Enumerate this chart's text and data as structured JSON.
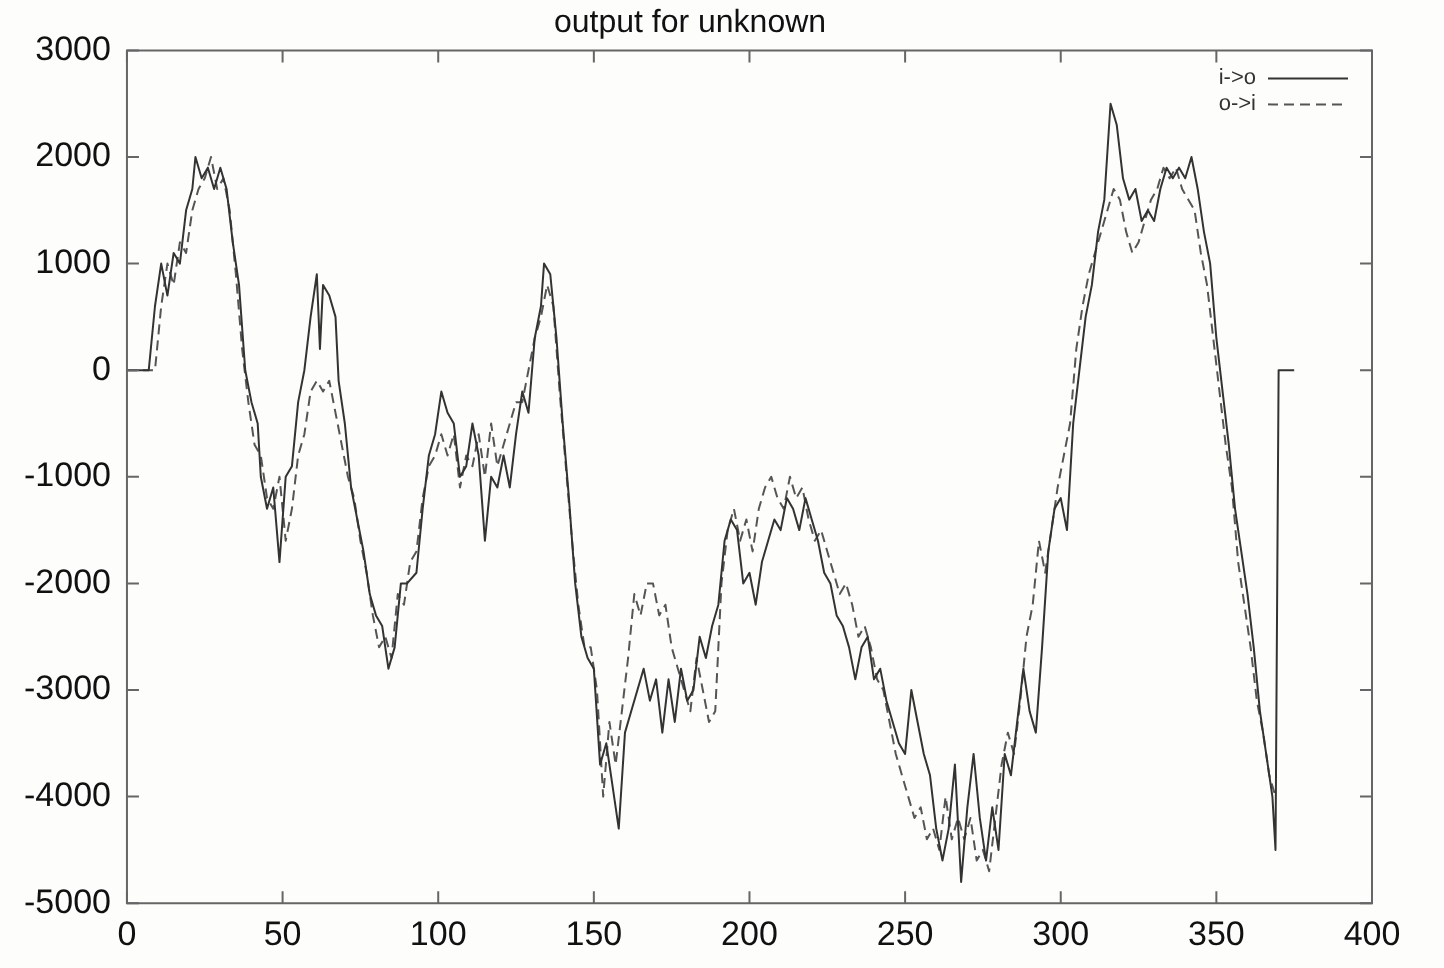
{
  "chart_data": {
    "type": "line",
    "title": "output for unknown",
    "xlim": [
      0,
      400
    ],
    "xticks": [
      0,
      50,
      100,
      150,
      200,
      250,
      300,
      350,
      400
    ],
    "ylim": [
      -5000,
      3000
    ],
    "yticks": [
      -5000,
      -4000,
      -3000,
      -2000,
      -1000,
      0,
      1000,
      2000,
      3000
    ],
    "grid": false,
    "legend": "top right",
    "marker": "none",
    "series": [
      {
        "name": "i->o",
        "color": "#333333",
        "line_style": "solid",
        "x": [
          0,
          7,
          9,
          11,
          13,
          15,
          17,
          19,
          21,
          22,
          24,
          26,
          28,
          30,
          32,
          34,
          36,
          38,
          40,
          42,
          43,
          45,
          47,
          49,
          51,
          53,
          55,
          57,
          59,
          61,
          62,
          63,
          65,
          67,
          68,
          70,
          72,
          74,
          76,
          78,
          80,
          82,
          84,
          86,
          88,
          90,
          93,
          95,
          97,
          99,
          101,
          103,
          105,
          107,
          109,
          111,
          113,
          115,
          117,
          119,
          121,
          123,
          125,
          127,
          129,
          131,
          133,
          134,
          136,
          138,
          140,
          142,
          144,
          146,
          148,
          150,
          152,
          154,
          156,
          158,
          160,
          162,
          164,
          166,
          168,
          170,
          172,
          174,
          176,
          178,
          180,
          182,
          184,
          186,
          188,
          190,
          192,
          194,
          196,
          198,
          200,
          202,
          204,
          206,
          208,
          210,
          212,
          214,
          216,
          218,
          220,
          222,
          224,
          226,
          228,
          230,
          232,
          234,
          236,
          238,
          240,
          242,
          244,
          246,
          248,
          250,
          252,
          254,
          256,
          258,
          260,
          262,
          264,
          266,
          268,
          270,
          272,
          274,
          276,
          278,
          280,
          282,
          284,
          286,
          288,
          290,
          292,
          294,
          296,
          298,
          300,
          302,
          304,
          306,
          308,
          310,
          312,
          314,
          316,
          318,
          320,
          322,
          324,
          326,
          328,
          330,
          332,
          334,
          336,
          338,
          340,
          342,
          344,
          346,
          348,
          350,
          352,
          354,
          356,
          358,
          360,
          362,
          364,
          366,
          368,
          369,
          370,
          375
        ],
        "values": [
          0,
          0,
          600,
          1000,
          700,
          1100,
          1000,
          1500,
          1700,
          2000,
          1800,
          1900,
          1700,
          1900,
          1700,
          1200,
          800,
          0,
          -300,
          -500,
          -1000,
          -1300,
          -1100,
          -1800,
          -1000,
          -900,
          -300,
          0,
          500,
          900,
          200,
          800,
          700,
          500,
          -100,
          -500,
          -1100,
          -1400,
          -1700,
          -2100,
          -2300,
          -2400,
          -2800,
          -2600,
          -2000,
          -2000,
          -1900,
          -1300,
          -800,
          -600,
          -200,
          -400,
          -500,
          -1000,
          -900,
          -500,
          -800,
          -1600,
          -1000,
          -1100,
          -800,
          -1100,
          -600,
          -200,
          -400,
          300,
          600,
          1000,
          900,
          300,
          -500,
          -1200,
          -2000,
          -2500,
          -2700,
          -2800,
          -3700,
          -3500,
          -3900,
          -4300,
          -3400,
          -3200,
          -3000,
          -2800,
          -3100,
          -2900,
          -3400,
          -2900,
          -3300,
          -2800,
          -3100,
          -3000,
          -2500,
          -2700,
          -2400,
          -2200,
          -1600,
          -1400,
          -1500,
          -2000,
          -1900,
          -2200,
          -1800,
          -1600,
          -1400,
          -1500,
          -1200,
          -1300,
          -1500,
          -1200,
          -1400,
          -1600,
          -1900,
          -2000,
          -2300,
          -2400,
          -2600,
          -2900,
          -2600,
          -2500,
          -2900,
          -2800,
          -3100,
          -3300,
          -3500,
          -3600,
          -3000,
          -3300,
          -3600,
          -3800,
          -4300,
          -4600,
          -4300,
          -3700,
          -4800,
          -4100,
          -3600,
          -4200,
          -4600,
          -4100,
          -4500,
          -3600,
          -3800,
          -3300,
          -2800,
          -3200,
          -3400,
          -2600,
          -1700,
          -1300,
          -1200,
          -1500,
          -500,
          0,
          500,
          800,
          1300,
          1600,
          2500,
          2300,
          1800,
          1600,
          1700,
          1400,
          1500,
          1400,
          1700,
          1900,
          1800,
          1900,
          1800,
          2000,
          1700,
          1300,
          1000,
          300,
          -200,
          -700,
          -1300,
          -1700,
          -2100,
          -2600,
          -3200,
          -3600,
          -4000,
          -4500,
          0,
          0
        ]
      },
      {
        "name": "o->i",
        "color": "#555555",
        "line_style": "dashed",
        "x": [
          0,
          9,
          11,
          13,
          15,
          17,
          19,
          21,
          23,
          25,
          27,
          29,
          31,
          33,
          35,
          37,
          39,
          41,
          43,
          45,
          47,
          49,
          51,
          53,
          55,
          57,
          59,
          61,
          63,
          65,
          67,
          69,
          71,
          73,
          75,
          77,
          79,
          81,
          83,
          85,
          87,
          89,
          91,
          93,
          95,
          97,
          99,
          101,
          103,
          105,
          107,
          109,
          111,
          113,
          115,
          117,
          119,
          121,
          123,
          125,
          127,
          129,
          131,
          133,
          135,
          137,
          139,
          141,
          143,
          145,
          147,
          149,
          151,
          153,
          155,
          157,
          159,
          161,
          163,
          165,
          167,
          169,
          171,
          173,
          175,
          177,
          179,
          181,
          183,
          185,
          187,
          189,
          191,
          193,
          195,
          197,
          199,
          201,
          203,
          205,
          207,
          209,
          211,
          213,
          215,
          217,
          219,
          221,
          223,
          225,
          227,
          229,
          231,
          233,
          235,
          237,
          239,
          241,
          243,
          245,
          247,
          249,
          251,
          253,
          255,
          257,
          259,
          261,
          263,
          265,
          267,
          269,
          271,
          273,
          275,
          277,
          279,
          281,
          283,
          285,
          287,
          289,
          291,
          293,
          295,
          297,
          299,
          301,
          303,
          305,
          307,
          309,
          311,
          313,
          315,
          317,
          319,
          321,
          323,
          325,
          327,
          329,
          331,
          333,
          335,
          337,
          339,
          341,
          343,
          345,
          347,
          349,
          351,
          353,
          355,
          357,
          359,
          361,
          363,
          365,
          367,
          369
        ],
        "values": [
          0,
          0,
          600,
          1000,
          800,
          1200,
          1100,
          1500,
          1700,
          1800,
          2000,
          1700,
          1800,
          1500,
          900,
          200,
          -300,
          -700,
          -800,
          -1200,
          -1300,
          -1000,
          -1600,
          -1300,
          -800,
          -600,
          -200,
          -100,
          -200,
          -100,
          -400,
          -700,
          -1000,
          -1200,
          -1600,
          -1900,
          -2300,
          -2600,
          -2500,
          -2700,
          -2100,
          -2200,
          -1800,
          -1700,
          -1200,
          -900,
          -800,
          -600,
          -800,
          -600,
          -1100,
          -800,
          -900,
          -600,
          -1000,
          -500,
          -900,
          -700,
          -500,
          -300,
          -300,
          0,
          300,
          500,
          800,
          600,
          -200,
          -900,
          -1600,
          -2200,
          -2600,
          -2600,
          -3000,
          -4000,
          -3300,
          -3700,
          -3200,
          -2700,
          -2100,
          -2300,
          -2000,
          -2000,
          -2300,
          -2200,
          -2600,
          -2800,
          -3000,
          -3200,
          -2700,
          -3000,
          -3300,
          -3200,
          -2000,
          -1500,
          -1300,
          -1600,
          -1400,
          -1700,
          -1300,
          -1100,
          -1000,
          -1200,
          -1300,
          -1000,
          -1200,
          -1100,
          -1400,
          -1600,
          -1500,
          -1700,
          -1900,
          -2100,
          -2000,
          -2200,
          -2500,
          -2400,
          -2600,
          -2900,
          -3000,
          -3300,
          -3600,
          -3800,
          -4000,
          -4200,
          -4100,
          -4400,
          -4300,
          -4500,
          -4000,
          -4400,
          -4200,
          -4400,
          -4200,
          -4600,
          -4500,
          -4700,
          -4200,
          -3700,
          -3400,
          -3600,
          -3100,
          -2500,
          -2200,
          -1600,
          -1900,
          -1500,
          -1100,
          -800,
          -500,
          200,
          600,
          900,
          1100,
          1300,
          1500,
          1700,
          1600,
          1300,
          1100,
          1200,
          1400,
          1600,
          1700,
          1900,
          1800,
          1900,
          1700,
          1600,
          1500,
          1100,
          800,
          300,
          -200,
          -700,
          -1100,
          -1800,
          -2200,
          -2600,
          -3100,
          -3400,
          -3800,
          -4000
        ]
      }
    ]
  }
}
